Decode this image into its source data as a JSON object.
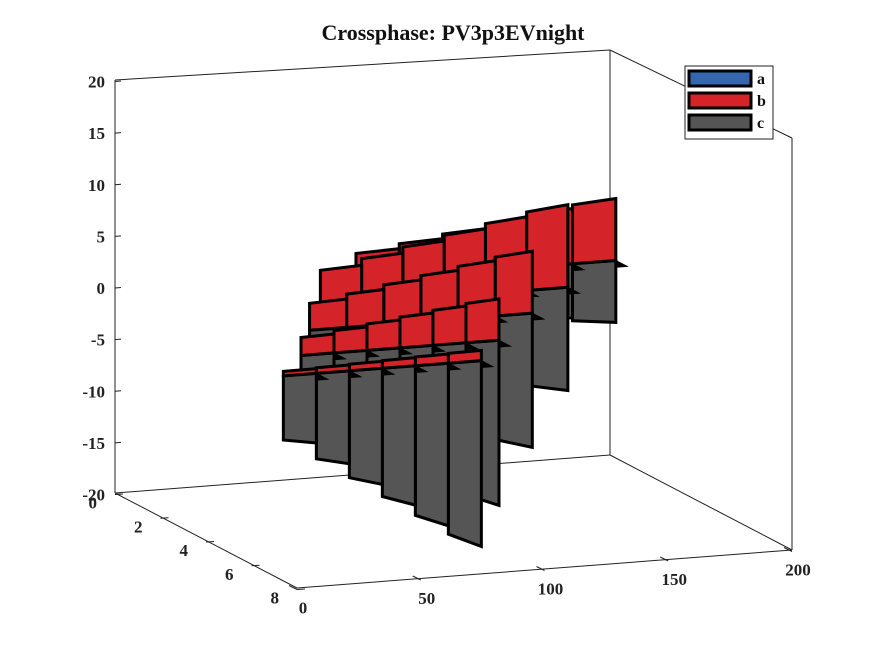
{
  "chart_data": {
    "type": "3d-bar",
    "title": "Crossphase: PV3p3EVnight",
    "z_ticks": [
      "20",
      "15",
      "10",
      "5",
      "0",
      "-5",
      "-10",
      "-15",
      "-20"
    ],
    "x_ticks": [
      "0",
      "50",
      "100",
      "150",
      "200"
    ],
    "y_ticks": [
      "0",
      "2",
      "4",
      "6",
      "8"
    ],
    "zlim": [
      -20,
      20
    ],
    "xlim": [
      0,
      200
    ],
    "ylim": [
      0,
      8
    ],
    "grid": false,
    "legend_position": "top-right",
    "series": [
      {
        "name": "a",
        "color": "#3567b0"
      },
      {
        "name": "b",
        "color": "#d42329"
      },
      {
        "name": "c",
        "color": "#555555"
      }
    ],
    "sections": [
      {
        "y": 7.4,
        "x": [
          0,
          80
        ],
        "peak_b": 1,
        "peak_c": -18
      },
      {
        "y": 6.0,
        "x": [
          20,
          100
        ],
        "peak_b": 4,
        "peak_c": -16
      },
      {
        "y": 4.2,
        "x": [
          40,
          130
        ],
        "peak_b": 6,
        "peak_c": -13
      },
      {
        "y": 2.5,
        "x": [
          60,
          160
        ],
        "peak_b": 8,
        "peak_c": -10
      },
      {
        "y": 0.8,
        "x": [
          90,
          195
        ],
        "peak_b": 6,
        "peak_c": -6
      }
    ]
  }
}
